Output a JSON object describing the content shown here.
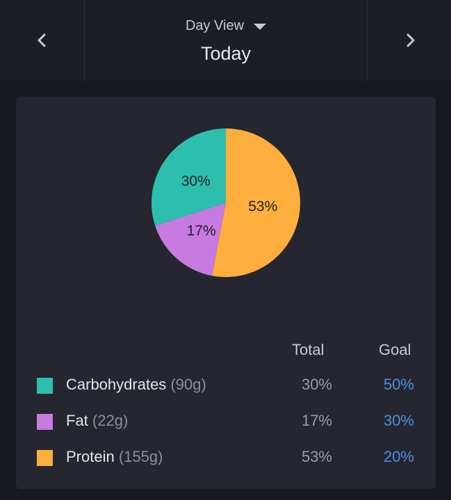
{
  "header": {
    "view_label": "Day View",
    "date_label": "Today"
  },
  "colors": {
    "carbohydrates": "#2cbfae",
    "fat": "#c77ae0",
    "protein": "#fdae3c",
    "goal_text": "#4a90e2"
  },
  "chart_data": {
    "type": "pie",
    "slices": [
      {
        "name": "Carbohydrates",
        "value": 30,
        "label": "30%",
        "color": "#2cbfae"
      },
      {
        "name": "Fat",
        "value": 17,
        "label": "17%",
        "color": "#c77ae0"
      },
      {
        "name": "Protein",
        "value": 53,
        "label": "53%",
        "color": "#fdae3c"
      }
    ]
  },
  "table": {
    "headers": {
      "total": "Total",
      "goal": "Goal"
    },
    "rows": [
      {
        "name": "Carbohydrates",
        "amount": "(90g)",
        "total": "30%",
        "goal": "50%",
        "color": "#2cbfae"
      },
      {
        "name": "Fat",
        "amount": "(22g)",
        "total": "17%",
        "goal": "30%",
        "color": "#c77ae0"
      },
      {
        "name": "Protein",
        "amount": "(155g)",
        "total": "53%",
        "goal": "20%",
        "color": "#fdae3c"
      }
    ]
  }
}
